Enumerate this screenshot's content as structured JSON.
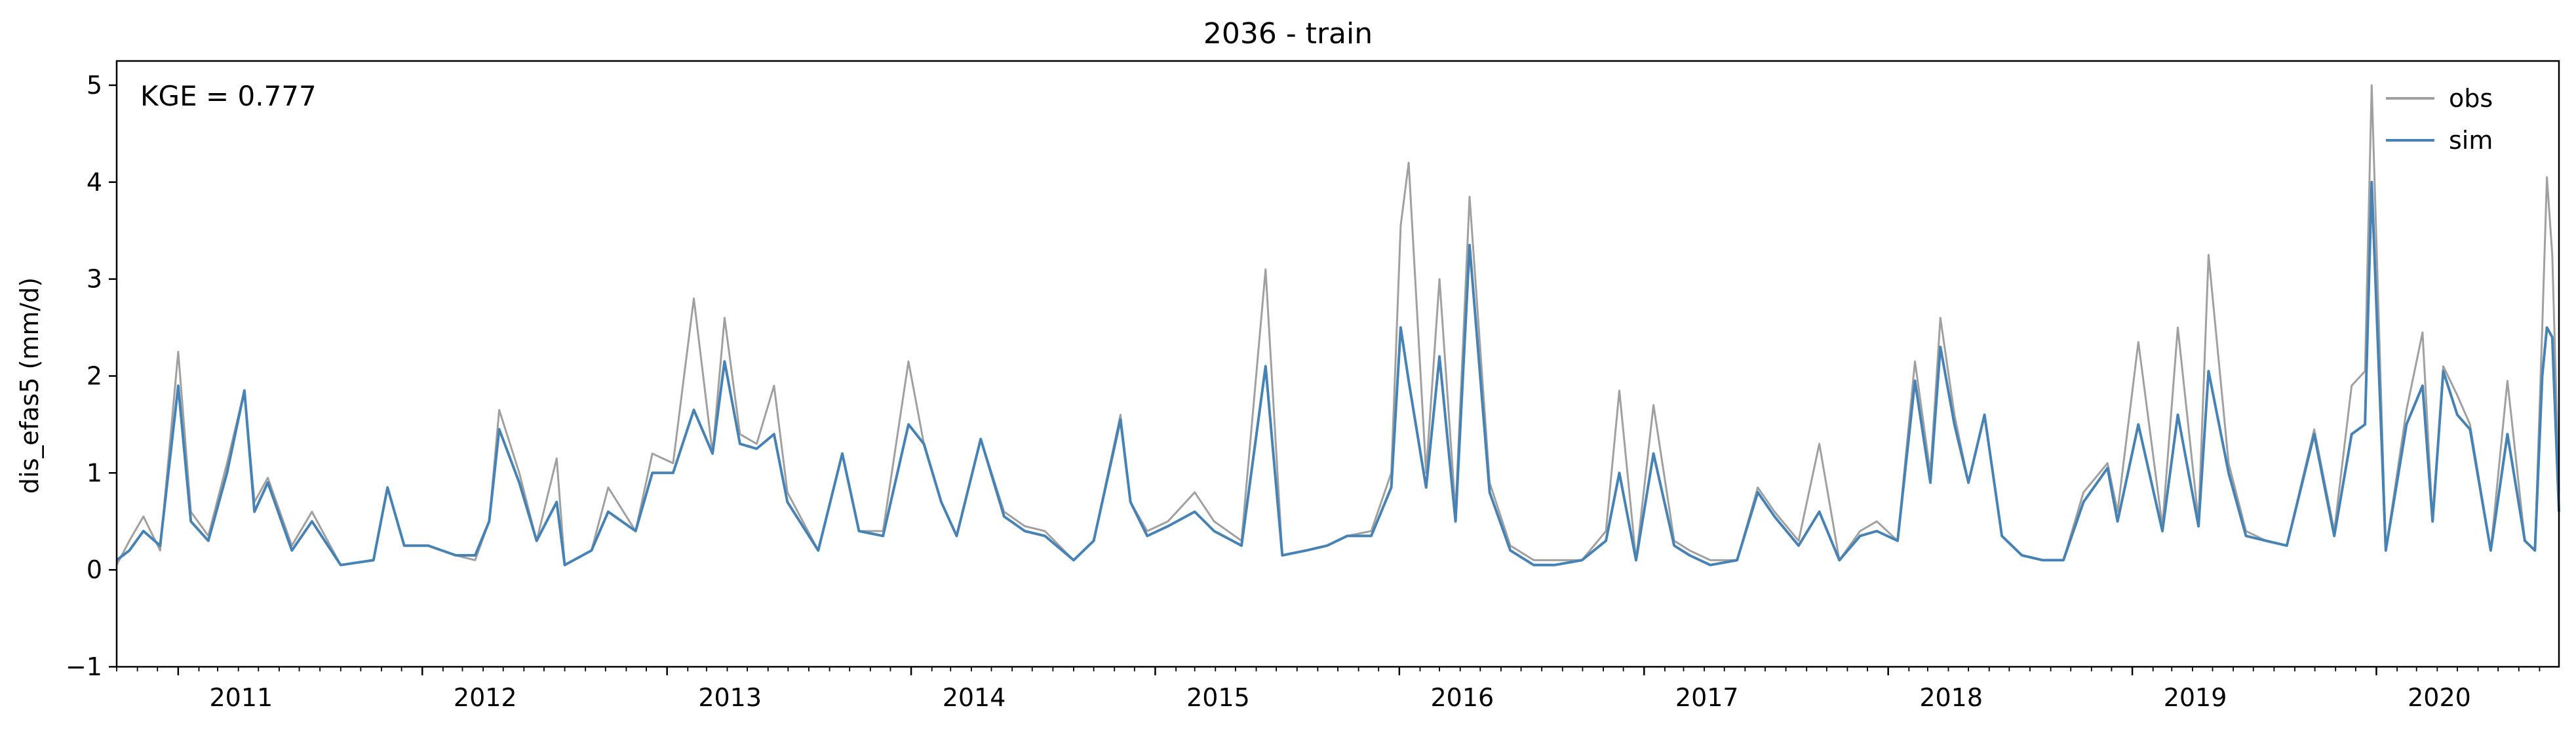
{
  "chart_data": {
    "type": "line",
    "title": "2036 - train",
    "xlabel": "",
    "ylabel": "dis_efas5 (mm/d)",
    "xlim": [
      "2010-10-01",
      "2020-09-30"
    ],
    "ylim": [
      -1,
      5.25
    ],
    "yticks": [
      -1,
      0,
      1,
      2,
      3,
      4,
      5
    ],
    "xticks": [
      {
        "label": "2011",
        "date": "2011-01-01"
      },
      {
        "label": "2012",
        "date": "2012-01-01"
      },
      {
        "label": "2013",
        "date": "2013-01-01"
      },
      {
        "label": "2014",
        "date": "2014-01-01"
      },
      {
        "label": "2015",
        "date": "2015-01-01"
      },
      {
        "label": "2016",
        "date": "2016-01-01"
      },
      {
        "label": "2017",
        "date": "2017-01-01"
      },
      {
        "label": "2018",
        "date": "2018-01-01"
      },
      {
        "label": "2019",
        "date": "2019-01-01"
      },
      {
        "label": "2020",
        "date": "2020-01-01"
      }
    ],
    "grid": false,
    "legend": {
      "placement": "top-right",
      "entries": [
        "obs",
        "sim"
      ]
    },
    "annotation": "KGE = 0.777",
    "series": [
      {
        "name": "obs",
        "color": "#a0a0a0",
        "x": [
          "2010-10-01",
          "2010-10-20",
          "2010-11-10",
          "2010-12-05",
          "2011-01-01",
          "2011-01-20",
          "2011-02-15",
          "2011-03-15",
          "2011-04-10",
          "2011-04-25",
          "2011-05-15",
          "2011-06-20",
          "2011-07-20",
          "2011-09-01",
          "2011-10-20",
          "2011-11-10",
          "2011-12-05",
          "2012-01-10",
          "2012-02-20",
          "2012-03-20",
          "2012-04-10",
          "2012-04-25",
          "2012-05-25",
          "2012-06-20",
          "2012-07-20",
          "2012-08-01",
          "2012-09-10",
          "2012-10-05",
          "2012-11-15",
          "2012-12-10",
          "2013-01-10",
          "2013-02-10",
          "2013-03-10",
          "2013-03-28",
          "2013-04-20",
          "2013-05-15",
          "2013-06-10",
          "2013-06-30",
          "2013-08-15",
          "2013-09-20",
          "2013-10-15",
          "2013-11-20",
          "2013-12-28",
          "2014-01-20",
          "2014-02-15",
          "2014-03-10",
          "2014-04-15",
          "2014-05-20",
          "2014-06-20",
          "2014-07-20",
          "2014-09-01",
          "2014-10-01",
          "2014-11-10",
          "2014-11-25",
          "2014-12-20",
          "2015-01-20",
          "2015-03-01",
          "2015-03-30",
          "2015-05-10",
          "2015-06-15",
          "2015-07-10",
          "2015-08-15",
          "2015-09-15",
          "2015-10-15",
          "2015-11-20",
          "2015-12-20",
          "2016-01-03",
          "2016-01-15",
          "2016-02-10",
          "2016-03-01",
          "2016-03-25",
          "2016-04-15",
          "2016-05-15",
          "2016-06-15",
          "2016-07-20",
          "2016-08-20",
          "2016-09-30",
          "2016-11-05",
          "2016-11-25",
          "2016-12-20",
          "2017-01-15",
          "2017-02-15",
          "2017-03-10",
          "2017-04-10",
          "2017-05-20",
          "2017-06-20",
          "2017-07-15",
          "2017-08-20",
          "2017-09-20",
          "2017-10-20",
          "2017-11-20",
          "2017-12-15",
          "2018-01-15",
          "2018-02-10",
          "2018-03-05",
          "2018-03-20",
          "2018-04-10",
          "2018-05-01",
          "2018-05-25",
          "2018-06-20",
          "2018-07-20",
          "2018-08-20",
          "2018-09-20",
          "2018-10-20",
          "2018-11-25",
          "2018-12-10",
          "2019-01-10",
          "2019-02-15",
          "2019-03-10",
          "2019-04-10",
          "2019-04-25",
          "2019-05-25",
          "2019-06-20",
          "2019-07-20",
          "2019-08-20",
          "2019-09-30",
          "2019-10-30",
          "2019-11-25",
          "2019-12-15",
          "2019-12-25",
          "2020-01-15",
          "2020-02-15",
          "2020-03-10",
          "2020-03-25",
          "2020-04-10",
          "2020-05-01",
          "2020-05-20",
          "2020-06-20",
          "2020-07-15",
          "2020-08-10",
          "2020-08-25",
          "2020-09-05",
          "2020-09-12",
          "2020-09-20",
          "2020-09-30"
        ],
        "y": [
          0.05,
          0.3,
          0.55,
          0.2,
          2.25,
          0.6,
          0.35,
          1.1,
          1.85,
          0.7,
          0.95,
          0.25,
          0.6,
          0.05,
          0.1,
          0.85,
          0.25,
          0.25,
          0.15,
          0.1,
          0.5,
          1.65,
          1.0,
          0.3,
          1.15,
          0.05,
          0.2,
          0.85,
          0.4,
          1.2,
          1.1,
          2.8,
          1.2,
          2.6,
          1.4,
          1.3,
          1.9,
          0.8,
          0.2,
          1.2,
          0.4,
          0.4,
          2.15,
          1.3,
          0.7,
          0.35,
          1.35,
          0.6,
          0.45,
          0.4,
          0.1,
          0.3,
          1.6,
          0.7,
          0.4,
          0.5,
          0.8,
          0.5,
          0.3,
          3.1,
          0.15,
          0.2,
          0.25,
          0.35,
          0.4,
          1.0,
          3.55,
          4.2,
          1.0,
          3.0,
          0.6,
          3.85,
          0.9,
          0.25,
          0.1,
          0.1,
          0.1,
          0.4,
          1.85,
          0.1,
          1.7,
          0.3,
          0.2,
          0.1,
          0.1,
          0.85,
          0.6,
          0.3,
          1.3,
          0.1,
          0.4,
          0.5,
          0.3,
          2.15,
          1.0,
          2.6,
          1.6,
          0.9,
          1.6,
          0.35,
          0.15,
          0.1,
          0.1,
          0.8,
          1.1,
          0.6,
          2.35,
          0.45,
          2.5,
          0.5,
          3.25,
          1.1,
          0.4,
          0.3,
          0.25,
          1.45,
          0.4,
          1.9,
          2.05,
          5.0,
          0.2,
          1.65,
          2.45,
          0.5,
          2.1,
          1.8,
          1.5,
          0.2,
          1.95,
          0.3,
          0.2,
          2.5,
          4.05,
          3.25,
          0.8
        ]
      },
      {
        "name": "sim",
        "color": "#4682b4",
        "x": [
          "2010-10-01",
          "2010-10-20",
          "2010-11-10",
          "2010-12-05",
          "2011-01-01",
          "2011-01-20",
          "2011-02-15",
          "2011-03-15",
          "2011-04-10",
          "2011-04-25",
          "2011-05-15",
          "2011-06-20",
          "2011-07-20",
          "2011-09-01",
          "2011-10-20",
          "2011-11-10",
          "2011-12-05",
          "2012-01-10",
          "2012-02-20",
          "2012-03-20",
          "2012-04-10",
          "2012-04-25",
          "2012-05-25",
          "2012-06-20",
          "2012-07-20",
          "2012-08-01",
          "2012-09-10",
          "2012-10-05",
          "2012-11-15",
          "2012-12-10",
          "2013-01-10",
          "2013-02-10",
          "2013-03-10",
          "2013-03-28",
          "2013-04-20",
          "2013-05-15",
          "2013-06-10",
          "2013-06-30",
          "2013-08-15",
          "2013-09-20",
          "2013-10-15",
          "2013-11-20",
          "2013-12-28",
          "2014-01-20",
          "2014-02-15",
          "2014-03-10",
          "2014-04-15",
          "2014-05-20",
          "2014-06-20",
          "2014-07-20",
          "2014-09-01",
          "2014-10-01",
          "2014-11-10",
          "2014-11-25",
          "2014-12-20",
          "2015-01-20",
          "2015-03-01",
          "2015-03-30",
          "2015-05-10",
          "2015-06-15",
          "2015-07-10",
          "2015-08-15",
          "2015-09-15",
          "2015-10-15",
          "2015-11-20",
          "2015-12-20",
          "2016-01-03",
          "2016-01-15",
          "2016-02-10",
          "2016-03-01",
          "2016-03-25",
          "2016-04-15",
          "2016-05-15",
          "2016-06-15",
          "2016-07-20",
          "2016-08-20",
          "2016-09-30",
          "2016-11-05",
          "2016-11-25",
          "2016-12-20",
          "2017-01-15",
          "2017-02-15",
          "2017-03-10",
          "2017-04-10",
          "2017-05-20",
          "2017-06-20",
          "2017-07-15",
          "2017-08-20",
          "2017-09-20",
          "2017-10-20",
          "2017-11-20",
          "2017-12-15",
          "2018-01-15",
          "2018-02-10",
          "2018-03-05",
          "2018-03-20",
          "2018-04-10",
          "2018-05-01",
          "2018-05-25",
          "2018-06-20",
          "2018-07-20",
          "2018-08-20",
          "2018-09-20",
          "2018-10-20",
          "2018-11-25",
          "2018-12-10",
          "2019-01-10",
          "2019-02-15",
          "2019-03-10",
          "2019-04-10",
          "2019-04-25",
          "2019-05-25",
          "2019-06-20",
          "2019-07-20",
          "2019-08-20",
          "2019-09-30",
          "2019-10-30",
          "2019-11-25",
          "2019-12-15",
          "2019-12-25",
          "2020-01-15",
          "2020-02-15",
          "2020-03-10",
          "2020-03-25",
          "2020-04-10",
          "2020-05-01",
          "2020-05-20",
          "2020-06-20",
          "2020-07-15",
          "2020-08-10",
          "2020-08-25",
          "2020-09-05",
          "2020-09-12",
          "2020-09-20",
          "2020-09-30"
        ],
        "y": [
          0.1,
          0.2,
          0.4,
          0.25,
          1.9,
          0.5,
          0.3,
          1.0,
          1.85,
          0.6,
          0.9,
          0.2,
          0.5,
          0.05,
          0.1,
          0.85,
          0.25,
          0.25,
          0.15,
          0.15,
          0.5,
          1.45,
          0.9,
          0.3,
          0.7,
          0.05,
          0.2,
          0.6,
          0.4,
          1.0,
          1.0,
          1.65,
          1.2,
          2.15,
          1.3,
          1.25,
          1.4,
          0.7,
          0.2,
          1.2,
          0.4,
          0.35,
          1.5,
          1.3,
          0.7,
          0.35,
          1.35,
          0.55,
          0.4,
          0.35,
          0.1,
          0.3,
          1.55,
          0.7,
          0.35,
          0.45,
          0.6,
          0.4,
          0.25,
          2.1,
          0.15,
          0.2,
          0.25,
          0.35,
          0.35,
          0.85,
          2.5,
          1.95,
          0.85,
          2.2,
          0.5,
          3.35,
          0.8,
          0.2,
          0.05,
          0.05,
          0.1,
          0.3,
          1.0,
          0.1,
          1.2,
          0.25,
          0.15,
          0.05,
          0.1,
          0.8,
          0.55,
          0.25,
          0.6,
          0.1,
          0.35,
          0.4,
          0.3,
          1.95,
          0.9,
          2.3,
          1.5,
          0.9,
          1.6,
          0.35,
          0.15,
          0.1,
          0.1,
          0.7,
          1.05,
          0.5,
          1.5,
          0.4,
          1.6,
          0.45,
          2.05,
          1.0,
          0.35,
          0.3,
          0.25,
          1.4,
          0.35,
          1.4,
          1.5,
          4.0,
          0.2,
          1.5,
          1.9,
          0.5,
          2.05,
          1.6,
          1.45,
          0.2,
          1.4,
          0.3,
          0.2,
          2.0,
          2.5,
          2.4,
          0.6
        ]
      }
    ]
  }
}
